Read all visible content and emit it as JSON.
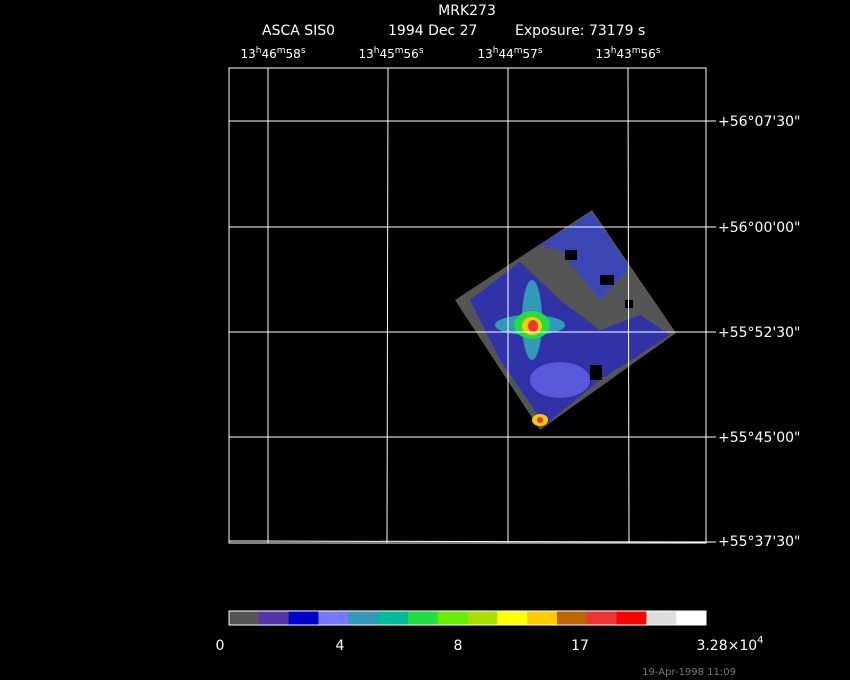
{
  "header": {
    "title": "MRK273",
    "instrument": "ASCA SIS0",
    "date": "1994 Dec 27",
    "exposure": "Exposure: 73179 s"
  },
  "ra_labels": [
    [
      "13",
      "h",
      "46",
      "m",
      "58",
      "s"
    ],
    [
      "13",
      "h",
      "45",
      "m",
      "56",
      "s"
    ],
    [
      "13",
      "h",
      "44",
      "m",
      "57",
      "s"
    ],
    [
      "13",
      "h",
      "43",
      "m",
      "56",
      "s"
    ]
  ],
  "dec_labels": [
    "+56°07'30\"",
    "+56°00'00\"",
    "+55°52'30\"",
    "+55°45'00\"",
    "+55°37'30\""
  ],
  "colorbar": {
    "colors": [
      "#555555",
      "#5533aa",
      "#0000cc",
      "#7777ff",
      "#3399bb",
      "#00bb99",
      "#22dd44",
      "#66ee00",
      "#aadd00",
      "#ffff00",
      "#ffcc00",
      "#bb6600",
      "#ee3333",
      "#ff0000",
      "#dddddd",
      "#ffffff"
    ],
    "labels": [
      "0",
      "4",
      "8",
      "17",
      [
        "3.28×10",
        "4"
      ]
    ]
  },
  "footer": "19-Apr-1998 11:09"
}
